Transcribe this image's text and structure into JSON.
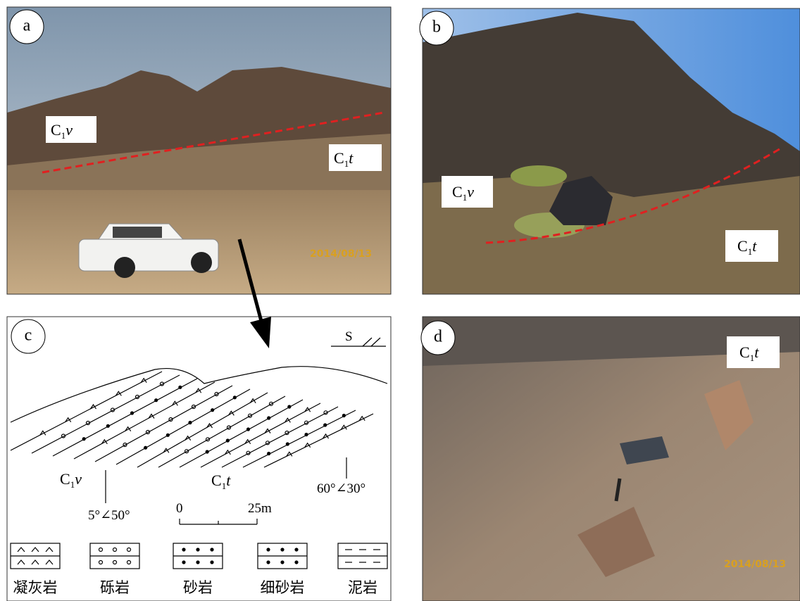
{
  "panels": [
    {
      "label": "a",
      "units": [
        {
          "base": "C",
          "sub": "1",
          "name": "v"
        },
        {
          "base": "C",
          "sub": "1",
          "name": "t"
        }
      ],
      "date": "2014/08/13"
    },
    {
      "label": "b",
      "units": [
        {
          "base": "C",
          "sub": "1",
          "name": "v"
        },
        {
          "base": "C",
          "sub": "1",
          "name": "t"
        }
      ]
    },
    {
      "label": "c",
      "units": [
        {
          "base": "C",
          "sub": "1",
          "name": "v"
        },
        {
          "base": "C",
          "sub": "1",
          "name": "t"
        }
      ],
      "compass": "S",
      "attitudes": [
        "5°∠50°",
        "60°∠30°"
      ],
      "scale": [
        "0",
        "25m"
      ],
      "legend": [
        "凝灰岩",
        "砾岩",
        "砂岩",
        "细砂岩",
        "泥岩"
      ]
    },
    {
      "label": "d",
      "units": [
        {
          "base": "C",
          "sub": "1",
          "name": "t"
        }
      ],
      "date": "2014/08/13"
    }
  ]
}
